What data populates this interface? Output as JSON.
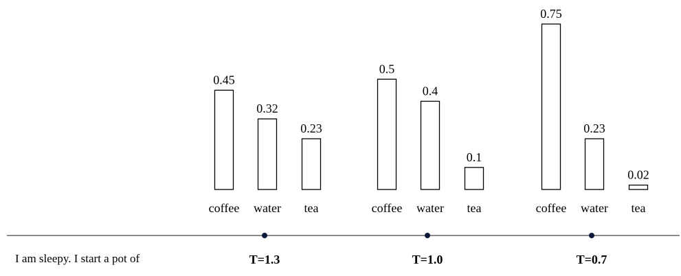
{
  "prompt_text": "I am sleepy. I start a pot of",
  "colors": {
    "bar_fill": "#ffffff",
    "bar_stroke": "#000000",
    "dot": "#0c1a3a",
    "axis": "#444444"
  },
  "chart_data": [
    {
      "type": "bar",
      "label": "T=1.3",
      "categories": [
        "coffee",
        "water",
        "tea"
      ],
      "values": [
        0.45,
        0.32,
        0.23
      ],
      "value_labels": [
        "0.45",
        "0.32",
        "0.23"
      ],
      "ylim": [
        0,
        0.75
      ]
    },
    {
      "type": "bar",
      "label": "T=1.0",
      "categories": [
        "coffee",
        "water",
        "tea"
      ],
      "values": [
        0.5,
        0.4,
        0.1
      ],
      "value_labels": [
        "0.5",
        "0.4",
        "0.1"
      ],
      "ylim": [
        0,
        0.75
      ]
    },
    {
      "type": "bar",
      "label": "T=0.7",
      "categories": [
        "coffee",
        "water",
        "tea"
      ],
      "values": [
        0.75,
        0.23,
        0.02
      ],
      "value_labels": [
        "0.75",
        "0.23",
        "0.02"
      ],
      "ylim": [
        0,
        0.75
      ]
    }
  ]
}
